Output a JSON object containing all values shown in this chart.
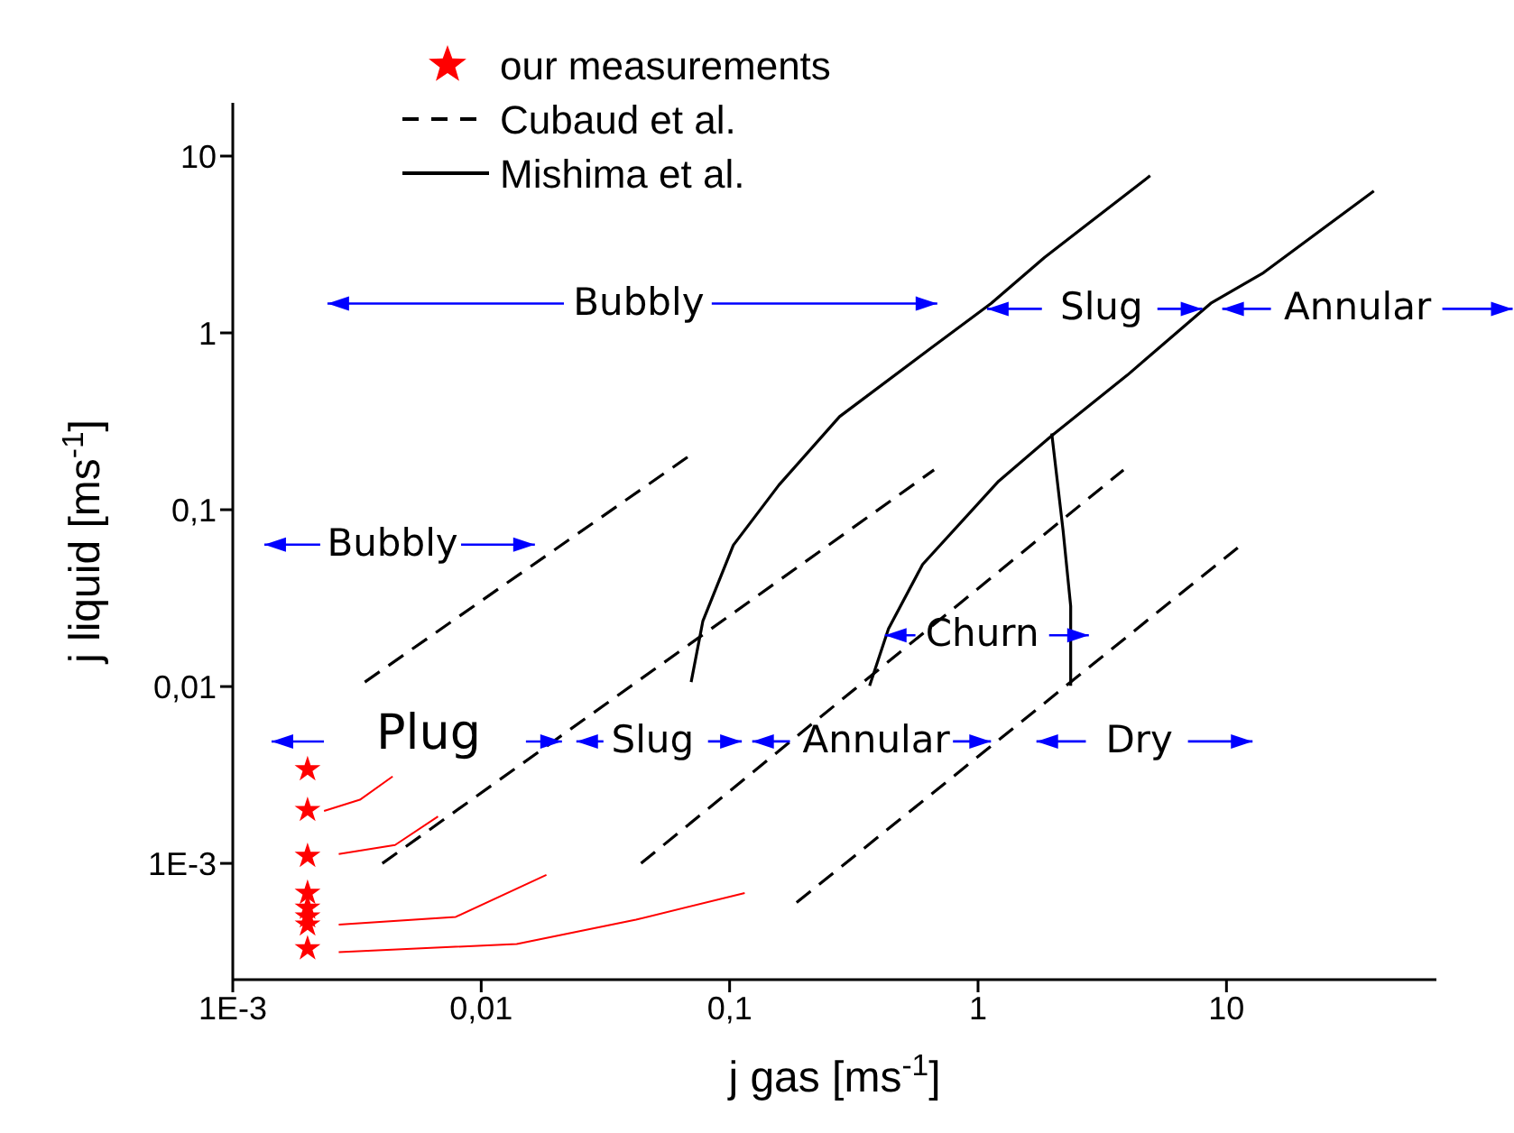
{
  "chart_data": {
    "type": "line",
    "xlabel": "j gas [ms$^{-1}$]",
    "ylabel": "j liquid [ms$^{-1}$]",
    "log": "xy",
    "legend": "top left",
    "marker": "none",
    "xlim": [
      0.001,
      70
    ],
    "ylim": [
      0.00022,
      20
    ],
    "xticks": [
      {
        "value": 0.001,
        "label": "1E-3"
      },
      {
        "value": 0.01,
        "label": "0,01"
      },
      {
        "value": 0.1,
        "label": "0,1"
      },
      1,
      10
    ],
    "yticks": [
      {
        "value": 0.001,
        "label": "1E-3"
      },
      {
        "value": 0.01,
        "label": "0,01"
      },
      {
        "value": 0.1,
        "label": "0,1"
      },
      1,
      10
    ],
    "series": [
      {
        "name": "our measurements",
        "type": "scatter",
        "marker": "star",
        "color": "#ff0000",
        "x": [
          0.002,
          0.002,
          0.002,
          0.002,
          0.002,
          0.002,
          0.002,
          0.002
        ],
        "values": [
          0.0034,
          0.002,
          0.0011,
          0.00068,
          0.00056,
          0.0005,
          0.00045,
          0.00033
        ]
      },
      {
        "name": "Cubaud et al.",
        "type": "line",
        "line_style": "dashed",
        "color": "#000000",
        "x": [
          0.0034,
          0.07
        ],
        "values": [
          0.0106,
          0.205
        ]
      },
      {
        "type": "line",
        "line_style": "dashed",
        "color": "#000000",
        "x": [
          0.004,
          0.665
        ],
        "values": [
          0.001,
          0.168
        ]
      },
      {
        "type": "line",
        "line_style": "dashed",
        "color": "#000000",
        "x": [
          0.044,
          3.85
        ],
        "values": [
          0.001,
          0.168
        ]
      },
      {
        "type": "line",
        "line_style": "dashed",
        "color": "#000000",
        "x": [
          0.186,
          11.1
        ],
        "values": [
          0.0006,
          0.061
        ]
      },
      {
        "name": "Mishima et al.",
        "type": "line",
        "line_style": "solid",
        "color": "#000000",
        "x": [
          0.07,
          0.078,
          0.1035,
          0.158,
          0.277,
          0.642,
          1.13,
          1.85,
          4.93
        ],
        "values": [
          0.0106,
          0.0234,
          0.063,
          0.138,
          0.336,
          0.815,
          1.47,
          2.67,
          7.74
        ]
      },
      {
        "type": "line",
        "line_style": "solid",
        "color": "#000000",
        "x": [
          0.366,
          0.436,
          0.598,
          1.21,
          1.98,
          3.99,
          8.65,
          14.1,
          39.2
        ],
        "values": [
          0.0101,
          0.0212,
          0.049,
          0.145,
          0.262,
          0.577,
          1.47,
          2.19,
          6.35
        ]
      },
      {
        "type": "line",
        "line_style": "solid",
        "color": "#000000",
        "x": [
          1.98,
          2.2,
          2.36,
          2.36
        ],
        "values": [
          0.27,
          0.076,
          0.0285,
          0.0101
        ]
      },
      {
        "type": "line",
        "line_style": "solid",
        "color": "#ff0000",
        "x": [
          0.00233,
          0.00325,
          0.0044
        ],
        "values": [
          0.00198,
          0.00229,
          0.0031
        ]
      },
      {
        "type": "line",
        "line_style": "solid",
        "color": "#ff0000",
        "x": [
          0.00267,
          0.0045,
          0.0067
        ],
        "values": [
          0.00113,
          0.00127,
          0.00184
        ]
      },
      {
        "type": "line",
        "line_style": "solid",
        "color": "#ff0000",
        "x": [
          0.00267,
          0.0079,
          0.0183
        ],
        "values": [
          0.00045,
          0.000498,
          0.00086
        ]
      },
      {
        "type": "line",
        "line_style": "solid",
        "color": "#ff0000",
        "x": [
          0.00267,
          0.0139,
          0.042,
          0.115
        ],
        "values": [
          0.000315,
          0.00035,
          0.00048,
          0.00068
        ]
      }
    ],
    "annotations": [
      "Bubbly",
      "Slug",
      "Annular",
      "Bubbly",
      "Churn",
      "Plug",
      "Slug",
      "Annular",
      "Dry"
    ]
  }
}
